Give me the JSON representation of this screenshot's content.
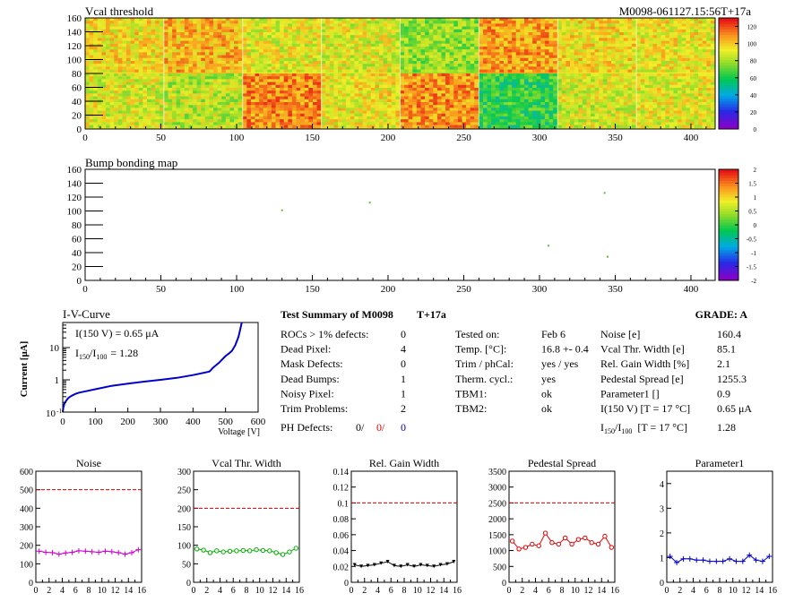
{
  "header": {
    "panel1_title": "Vcal threshold",
    "module_id": "M0098-061127.15:56T+17a",
    "panel2_title": "Bump bonding map",
    "x_ticks": [
      "0",
      "50",
      "100",
      "150",
      "200",
      "250",
      "300",
      "350",
      "400"
    ],
    "y_ticks": [
      "0",
      "20",
      "40",
      "60",
      "80",
      "100",
      "120",
      "140",
      "160"
    ],
    "palette1_ticks": [
      "0",
      "20",
      "40",
      "60",
      "80",
      "100",
      "120"
    ],
    "palette2_ticks": [
      "-2",
      "-1.5",
      "-1",
      "-0.5",
      "0",
      "0.5",
      "1",
      "1.5",
      "2"
    ]
  },
  "iv": {
    "title": "I-V-Curve",
    "ylabel": "Current [μA]",
    "xlabel": "Voltage [V]",
    "ann1": "I(150 V) = 0.65 μA",
    "ann2_pre": "I",
    "ann2_sub1": "150",
    "ann2_mid": "/I",
    "ann2_sub2": "100",
    "ann2_val": "=  1.28",
    "x_ticks": [
      "0",
      "100",
      "200",
      "300",
      "400",
      "500",
      "600"
    ],
    "y_ticks": [
      "10",
      "1",
      "10"
    ],
    "y_tick_exp": "-1"
  },
  "summary": {
    "title": "Test Summary of M0098",
    "tag": "T+17a",
    "grade": "GRADE:  A",
    "col1": [
      {
        "label": "ROCs > 1% defects:",
        "value": "0"
      },
      {
        "label": "Dead Pixel:",
        "value": "4"
      },
      {
        "label": "Mask Defects:",
        "value": "0"
      },
      {
        "label": "Dead Bumps:",
        "value": "1"
      },
      {
        "label": "Noisy Pixel:",
        "value": "1"
      },
      {
        "label": "Trim Problems:",
        "value": "2"
      }
    ],
    "ph_label": "PH Defects:",
    "ph_values": [
      "0/",
      "0/",
      "0"
    ],
    "col2": [
      {
        "label": "Tested on:",
        "value": "Feb 6"
      },
      {
        "label": "Temp. [°C]:",
        "value": "16.8 +- 0.4"
      },
      {
        "label": "Trim / phCal:",
        "value": "yes / yes"
      },
      {
        "label": "Therm. cycl.:",
        "value": "yes"
      },
      {
        "label": "TBM1:",
        "value": "ok"
      },
      {
        "label": "TBM2:",
        "value": "ok"
      }
    ],
    "col3": [
      {
        "label": "Noise [e]",
        "value": "160.4"
      },
      {
        "label": "Vcal Thr. Width [e]",
        "value": "85.1"
      },
      {
        "label": "Rel. Gain Width [%]",
        "value": "2.1"
      },
      {
        "label": "Pedestal Spread [e]",
        "value": "1255.3"
      },
      {
        "label": "Parameter1 []",
        "value": "0.9"
      },
      {
        "label": "I(150 V) [T = 17 °C]",
        "value": "0.65 μA"
      }
    ],
    "ratio_label": "[T = 17 °C]",
    "ratio_value": "1.28"
  },
  "chart_data": [
    {
      "type": "heatmap",
      "title": "Vcal threshold",
      "x_range": [
        0,
        416
      ],
      "y_range": [
        0,
        160
      ],
      "grid_cols": 8,
      "grid_rows": 2,
      "roc_mean_values": [
        [
          96,
          104,
          92,
          90,
          78,
          108,
          96,
          94
        ],
        [
          90,
          84,
          112,
          94,
          110,
          64,
          88,
          92
        ]
      ],
      "z_range": [
        0,
        130
      ],
      "note": "16 ROC blocks; top row ROCs 8-15, bottom row ROCs 0-7"
    },
    {
      "type": "scatter",
      "title": "Bump bonding map",
      "x_range": [
        0,
        416
      ],
      "y_range": [
        0,
        160
      ],
      "z_range": [
        -2,
        2
      ],
      "points": [
        [
          130,
          101
        ],
        [
          188,
          112
        ],
        [
          306,
          50
        ],
        [
          343,
          126
        ],
        [
          345,
          34
        ]
      ]
    },
    {
      "type": "line",
      "title": "I-V-Curve",
      "xlabel": "Voltage [V]",
      "ylabel": "Current [μA]",
      "log_y": true,
      "xlim": [
        0,
        600
      ],
      "ylim": [
        0.1,
        60
      ],
      "x": [
        0,
        2,
        5,
        10,
        15,
        20,
        30,
        40,
        50,
        70,
        100,
        150,
        200,
        250,
        300,
        350,
        400,
        450,
        455,
        460,
        470,
        480,
        490,
        500,
        510,
        520,
        530,
        540,
        550
      ],
      "y": [
        0.1,
        0.14,
        0.18,
        0.22,
        0.26,
        0.29,
        0.33,
        0.37,
        0.4,
        0.44,
        0.51,
        0.65,
        0.76,
        0.88,
        1.0,
        1.15,
        1.4,
        1.8,
        2.0,
        2.3,
        2.8,
        3.4,
        4.3,
        5.5,
        6.5,
        8,
        12,
        22,
        60
      ]
    },
    {
      "type": "line",
      "title": "Noise",
      "color": "#cc00cc",
      "xlim": [
        0,
        16
      ],
      "ylim": [
        0,
        600
      ],
      "yticks": [
        0,
        100,
        200,
        300,
        400,
        500,
        600
      ],
      "threshold": 500,
      "x": [
        0.5,
        1.5,
        2.5,
        3.5,
        4.5,
        5.5,
        6.5,
        7.5,
        8.5,
        9.5,
        10.5,
        11.5,
        12.5,
        13.5,
        14.5,
        15.5
      ],
      "values": [
        168,
        162,
        160,
        152,
        158,
        162,
        170,
        168,
        165,
        162,
        168,
        165,
        160,
        152,
        160,
        176
      ]
    },
    {
      "type": "line",
      "title": "Vcal Thr. Width",
      "color": "#00aa00",
      "xlim": [
        0,
        16
      ],
      "ylim": [
        0,
        300
      ],
      "yticks": [
        0,
        50,
        100,
        150,
        200,
        250,
        300
      ],
      "threshold": 200,
      "x": [
        0.5,
        1.5,
        2.5,
        3.5,
        4.5,
        5.5,
        6.5,
        7.5,
        8.5,
        9.5,
        10.5,
        11.5,
        12.5,
        13.5,
        14.5,
        15.5
      ],
      "values": [
        90,
        87,
        80,
        85,
        82,
        84,
        85,
        86,
        85,
        88,
        86,
        85,
        80,
        75,
        82,
        92
      ]
    },
    {
      "type": "line",
      "title": "Rel. Gain Width",
      "color": "#000000",
      "xlim": [
        0,
        16
      ],
      "ylim": [
        0,
        0.14
      ],
      "yticks": [
        0,
        0.02,
        0.04,
        0.06,
        0.08,
        0.1,
        0.12,
        0.14
      ],
      "threshold": 0.1,
      "x": [
        0.5,
        1.5,
        2.5,
        3.5,
        4.5,
        5.5,
        6.5,
        7.5,
        8.5,
        9.5,
        10.5,
        11.5,
        12.5,
        13.5,
        14.5,
        15.5
      ],
      "values": [
        0.022,
        0.02,
        0.021,
        0.022,
        0.024,
        0.026,
        0.021,
        0.02,
        0.022,
        0.02,
        0.022,
        0.021,
        0.02,
        0.022,
        0.023,
        0.026
      ]
    },
    {
      "type": "line",
      "title": "Pedestal Spread",
      "color": "#dd0000",
      "xlim": [
        0,
        16
      ],
      "ylim": [
        0,
        3500
      ],
      "yticks": [
        0,
        500,
        1000,
        1500,
        2000,
        2500,
        3000,
        3500
      ],
      "threshold": 2500,
      "x": [
        0.5,
        1.5,
        2.5,
        3.5,
        4.5,
        5.5,
        6.5,
        7.5,
        8.5,
        9.5,
        10.5,
        11.5,
        12.5,
        13.5,
        14.5,
        15.5
      ],
      "values": [
        1300,
        1050,
        1100,
        1200,
        1150,
        1550,
        1250,
        1200,
        1400,
        1200,
        1350,
        1400,
        1250,
        1200,
        1450,
        1100
      ]
    },
    {
      "type": "line",
      "title": "Parameter1",
      "color": "#0000cc",
      "xlim": [
        0,
        16
      ],
      "ylim": [
        0,
        4.5
      ],
      "yticks": [
        0,
        1,
        2,
        3,
        4
      ],
      "x": [
        0.5,
        1.5,
        2.5,
        3.5,
        4.5,
        5.5,
        6.5,
        7.5,
        8.5,
        9.5,
        10.5,
        11.5,
        12.5,
        13.5,
        14.5,
        15.5
      ],
      "values": [
        1.05,
        0.8,
        0.95,
        0.95,
        0.9,
        0.9,
        0.85,
        0.85,
        0.85,
        0.95,
        0.85,
        0.85,
        1.1,
        0.9,
        0.85,
        1.05
      ]
    }
  ]
}
